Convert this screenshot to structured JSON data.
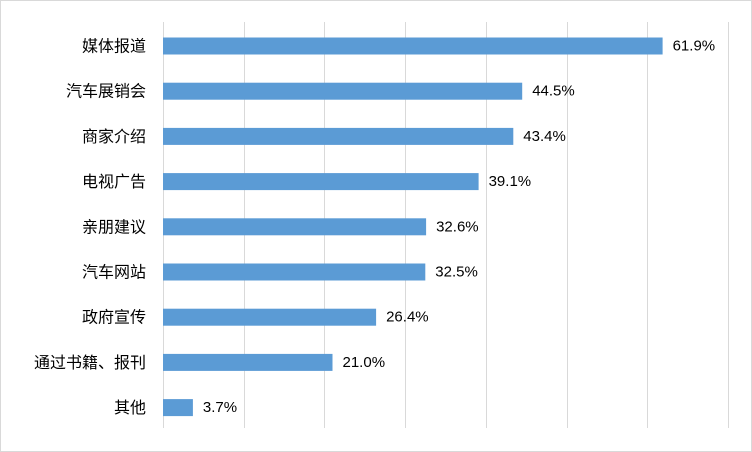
{
  "chart_data": {
    "type": "bar",
    "orientation": "horizontal",
    "title": "",
    "xlabel": "",
    "ylabel": "",
    "categories": [
      "媒体报道",
      "汽车展销会",
      "商家介绍",
      "电视广告",
      "亲朋建议",
      "汽车网站",
      "政府宣传",
      "通过书籍、报刊",
      "其他"
    ],
    "values": [
      61.9,
      44.5,
      43.4,
      39.1,
      32.6,
      32.5,
      26.4,
      21.0,
      3.7
    ],
    "value_labels": [
      "61.9%",
      "44.5%",
      "43.4%",
      "39.1%",
      "32.6%",
      "32.5%",
      "26.4%",
      "21.0%",
      "3.7%"
    ],
    "unit": "%",
    "xlim": [
      0,
      70
    ],
    "grid": true,
    "legend": "none",
    "bar_color": "#5b9bd5",
    "grid_color": "#d9d9d9"
  }
}
